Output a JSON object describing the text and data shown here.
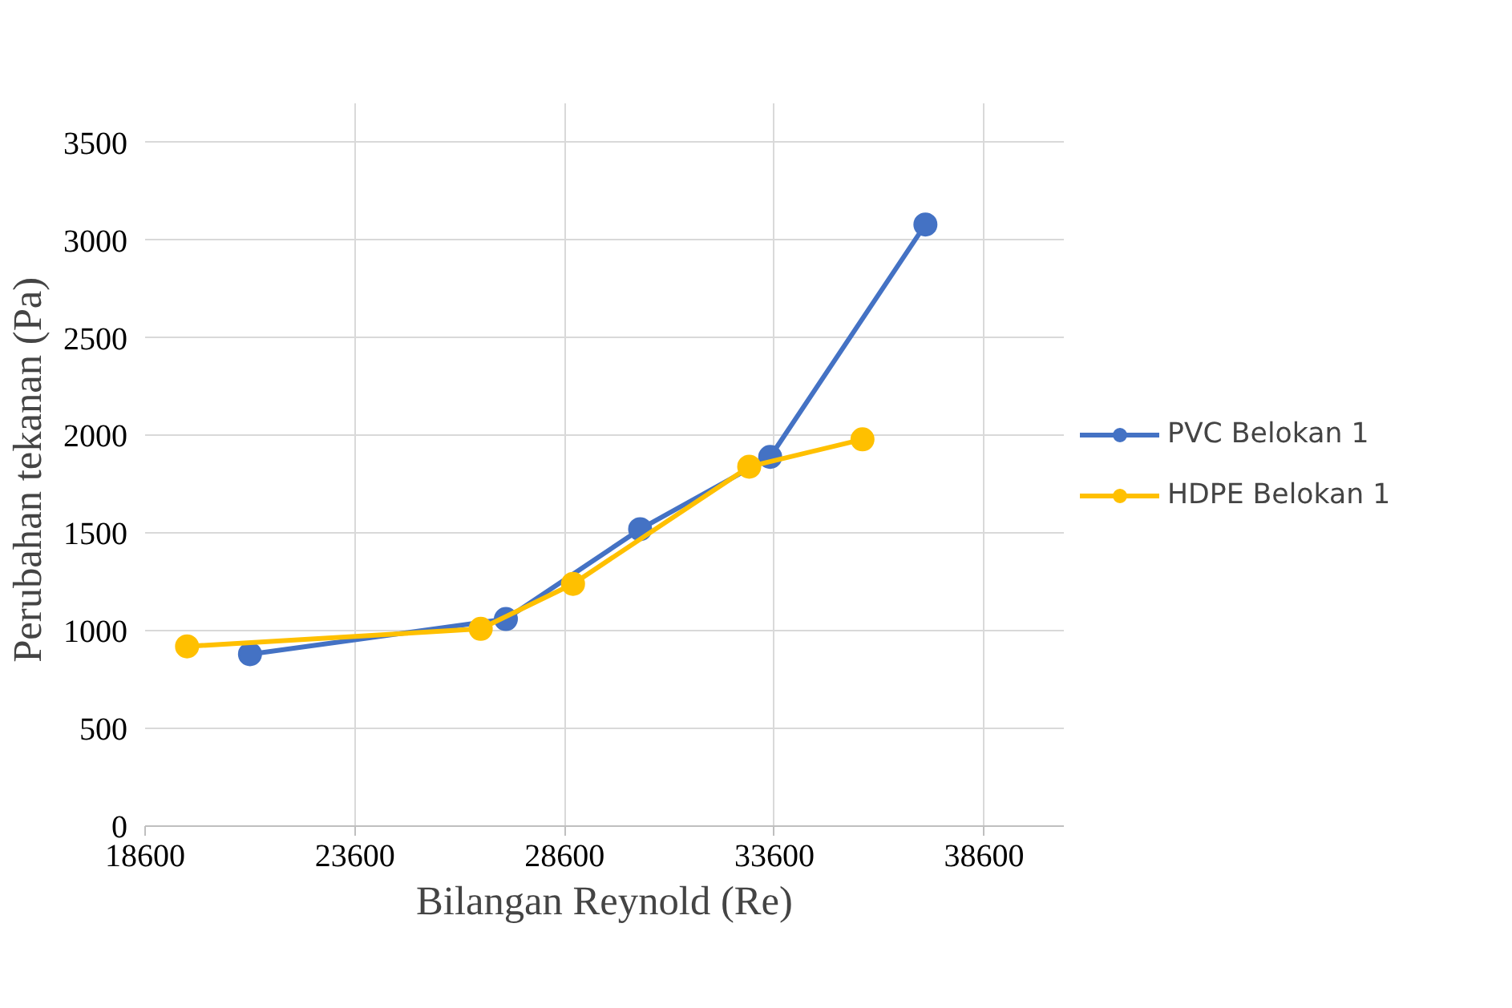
{
  "chart_data": {
    "type": "line",
    "xlabel": "Bilangan Reynold (Re)",
    "ylabel": "Perubahan tekanan  (Pa)",
    "xlim": [
      18600,
      40500
    ],
    "xticks": [
      18600,
      23600,
      28600,
      33600,
      38600
    ],
    "ylim": [
      0,
      3700
    ],
    "yticks": [
      0,
      500,
      1000,
      1500,
      2000,
      2500,
      3000,
      3500
    ],
    "grid": true,
    "legend": "right",
    "marker": "circle",
    "line_style": "solid",
    "series": [
      {
        "name": "PVC Belokan 1",
        "color": "#4472c4",
        "x": [
          21100,
          27200,
          30400,
          33500,
          37200
        ],
        "values": [
          880,
          1060,
          1520,
          1890,
          3080
        ]
      },
      {
        "name": "HDPE Belokan 1",
        "color": "#ffc000",
        "x": [
          19600,
          26600,
          28800,
          33000,
          35700
        ],
        "values": [
          920,
          1010,
          1240,
          1840,
          1980
        ]
      }
    ]
  }
}
